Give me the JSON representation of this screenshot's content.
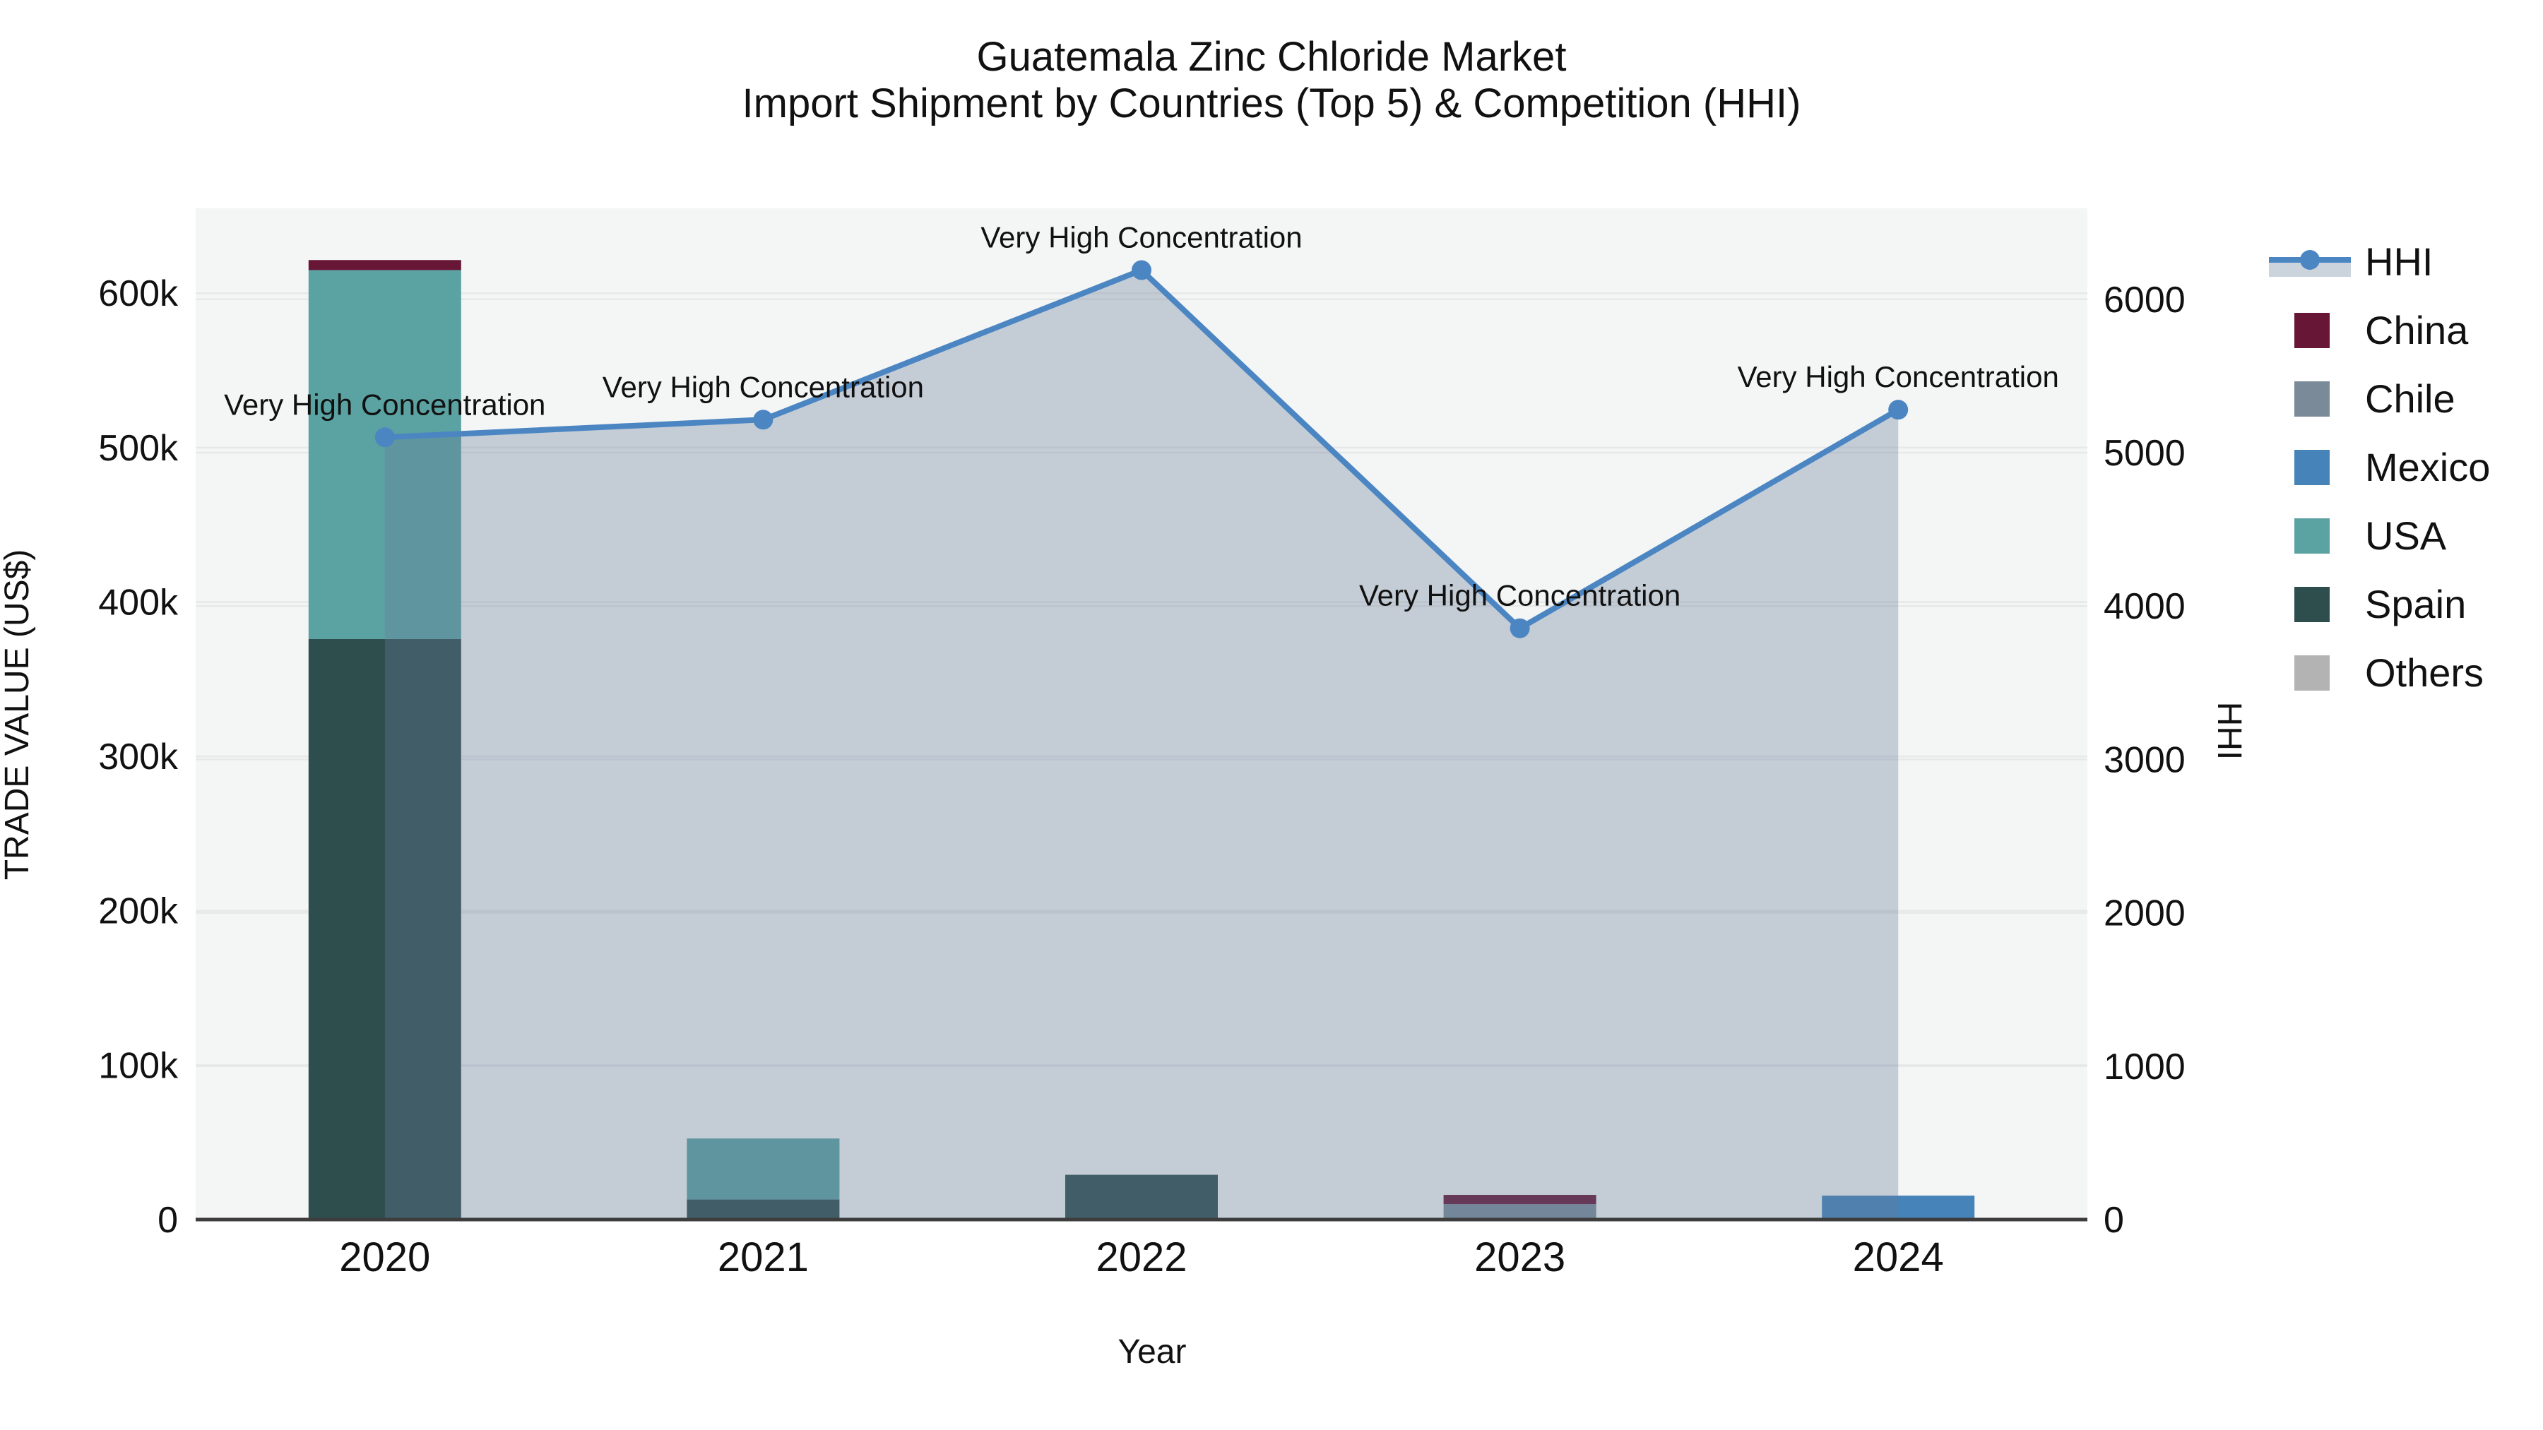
{
  "title": {
    "line1": "Guatemala Zinc Chloride Market",
    "line2": "Import Shipment by Countries (Top 5) & Competition (HHI)"
  },
  "axes": {
    "x": {
      "title": "Year",
      "categories": [
        "2020",
        "2021",
        "2022",
        "2023",
        "2024"
      ]
    },
    "y_left": {
      "title": "TRADE VALUE (US$)",
      "tick_labels": [
        "0",
        "100k",
        "200k",
        "300k",
        "400k",
        "500k",
        "600k"
      ],
      "tick_values": [
        0,
        100000,
        200000,
        300000,
        400000,
        500000,
        600000
      ],
      "range": [
        0,
        655000
      ]
    },
    "y_right": {
      "title": "HHI",
      "tick_labels": [
        "0",
        "1000",
        "2000",
        "3000",
        "4000",
        "5000",
        "6000"
      ],
      "tick_values": [
        0,
        1000,
        2000,
        3000,
        4000,
        5000,
        6000
      ],
      "range": [
        0,
        6593
      ]
    }
  },
  "annotation_label": "Very High Concentration",
  "colors": {
    "hhi_line": "#4B86C3",
    "hhi_area": "rgba(104,125,155,0.34)",
    "plot_bg": "#f4f5f5",
    "gridline": "#e7e9e9",
    "axis_line": "#3d3d3d",
    "China": "#671636",
    "Chile": "#7A8A99",
    "Mexico": "#4583B8",
    "USA": "#5BA2A2",
    "Spain": "#2E4D4D",
    "Others": "#B3B3B3"
  },
  "legend": {
    "items": [
      {
        "label": "HHI",
        "type": "line",
        "color_key": "hhi_line"
      },
      {
        "label": "China",
        "type": "box",
        "color_key": "China"
      },
      {
        "label": "Chile",
        "type": "box",
        "color_key": "Chile"
      },
      {
        "label": "Mexico",
        "type": "box",
        "color_key": "Mexico"
      },
      {
        "label": "USA",
        "type": "box",
        "color_key": "USA"
      },
      {
        "label": "Spain",
        "type": "box",
        "color_key": "Spain"
      },
      {
        "label": "Others",
        "type": "box",
        "color_key": "Others"
      }
    ]
  },
  "chart_data": [
    {
      "type": "bar",
      "stacked": true,
      "title": "Import Shipment by Countries (Top 5)",
      "xlabel": "Year",
      "ylabel": "TRADE VALUE (US$)",
      "ylim": [
        0,
        655000
      ],
      "categories": [
        "2020",
        "2021",
        "2022",
        "2023",
        "2024"
      ],
      "stack_order": [
        "Spain",
        "USA",
        "Chile",
        "China",
        "Mexico",
        "Others"
      ],
      "series": [
        {
          "name": "China",
          "values": [
            6500,
            0,
            0,
            6000,
            0
          ]
        },
        {
          "name": "Chile",
          "values": [
            0,
            0,
            0,
            10000,
            0
          ]
        },
        {
          "name": "Mexico",
          "values": [
            0,
            0,
            0,
            0,
            15500
          ]
        },
        {
          "name": "USA",
          "values": [
            239000,
            39500,
            0,
            0,
            0
          ]
        },
        {
          "name": "Spain",
          "values": [
            376000,
            13000,
            29000,
            0,
            0
          ]
        },
        {
          "name": "Others",
          "values": [
            0,
            0,
            0,
            0,
            0
          ]
        }
      ]
    },
    {
      "type": "line",
      "name": "HHI",
      "area": true,
      "x": [
        "2020",
        "2021",
        "2022",
        "2023",
        "2024"
      ],
      "values": [
        5100,
        5215,
        6190,
        3855,
        5280
      ],
      "ylabel": "HHI",
      "ylim": [
        0,
        6593
      ],
      "legend_position": "right",
      "grid": true,
      "point_annotations": [
        "Very High Concentration",
        "Very High Concentration",
        "Very High Concentration",
        "Very High Concentration",
        "Very High Concentration"
      ]
    }
  ]
}
